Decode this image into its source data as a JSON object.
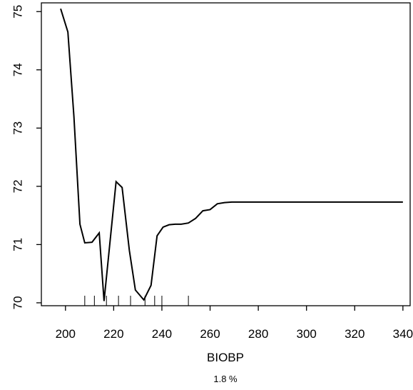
{
  "chart_data": {
    "type": "line",
    "title": "",
    "xlabel": "BIOBP",
    "ylabel": "",
    "subtitle": "1.8 %",
    "xlim": [
      190,
      343
    ],
    "ylim": [
      69.95,
      75.15
    ],
    "x_ticks": [
      200,
      220,
      240,
      260,
      280,
      300,
      320,
      340
    ],
    "y_ticks": [
      70,
      71,
      72,
      73,
      74,
      75
    ],
    "grid": false,
    "series": [
      {
        "x": [
          198,
          201,
          203.5,
          206,
          208,
          211,
          214,
          216,
          218,
          221,
          223.5,
          226.5,
          229,
          232.5,
          235.5,
          238,
          240.5,
          243,
          245.5,
          248,
          251,
          254,
          257,
          260,
          263,
          266,
          269,
          272,
          280,
          300,
          320,
          340
        ],
        "y": [
          75.05,
          74.65,
          73.2,
          71.35,
          71.03,
          71.04,
          71.2,
          70.03,
          70.85,
          72.08,
          71.98,
          70.9,
          70.22,
          70.05,
          70.3,
          71.15,
          71.3,
          71.34,
          71.35,
          71.35,
          71.37,
          71.45,
          71.58,
          71.6,
          71.7,
          71.72,
          71.73,
          71.73,
          71.73,
          71.73,
          71.73,
          71.73
        ]
      }
    ],
    "rug_x": [
      208,
      212,
      217,
      222,
      227,
      233,
      237,
      240,
      251
    ]
  }
}
